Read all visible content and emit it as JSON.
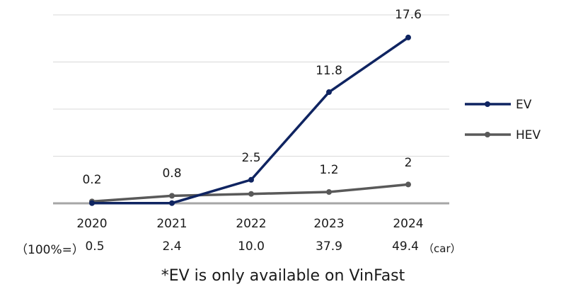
{
  "chart_data": {
    "type": "line",
    "categories": [
      "2020",
      "2021",
      "2022",
      "2023",
      "2024"
    ],
    "ylim": [
      0,
      20
    ],
    "grid": true,
    "legend_position": "right",
    "series": [
      {
        "name": "EV",
        "values": [
          0.02,
          0.02,
          2.5,
          11.8,
          17.6
        ],
        "color": "#0f2461"
      },
      {
        "name": "HEV",
        "values": [
          0.2,
          0.8,
          1.0,
          1.2,
          2.0
        ],
        "color": "#595959"
      }
    ],
    "data_labels": [
      "0.2",
      "0.8",
      "2.5",
      "11.8",
      "17.6",
      "1.2",
      "2"
    ],
    "totals": {
      "label": "（100%=）",
      "values": [
        "0.5",
        "2.4",
        "10.0",
        "37.9",
        "49.4"
      ],
      "unit": "（car）"
    },
    "footnote": "*EV is only available on VinFast"
  }
}
